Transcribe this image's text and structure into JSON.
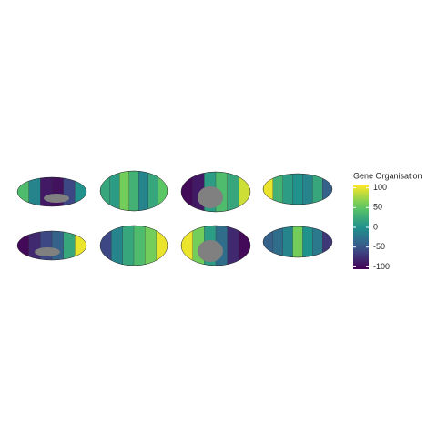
{
  "chart_data": {
    "type": "brain-map",
    "legend_title": "Gene Organisation",
    "clim": [
      -106,
      106
    ],
    "cticks": [
      100,
      50,
      0,
      -50,
      -100
    ],
    "views": [
      {
        "values": [
          40,
          -10,
          -90,
          -95,
          -60,
          0
        ]
      },
      {
        "values": [
          20,
          10,
          60,
          30,
          -10,
          20,
          50
        ]
      },
      {
        "values": [
          -100,
          -90,
          10,
          40,
          20,
          90
        ]
      },
      {
        "values": [
          100,
          30,
          10,
          0,
          -10,
          20,
          -40
        ]
      },
      {
        "values": [
          -100,
          -80,
          -60,
          -40,
          20,
          100
        ]
      },
      {
        "values": [
          -60,
          -10,
          20,
          40,
          60,
          100
        ]
      },
      {
        "values": [
          100,
          60,
          10,
          -30,
          -80,
          -100
        ]
      },
      {
        "values": [
          -40,
          -30,
          -10,
          60,
          0,
          -20,
          -70
        ]
      }
    ]
  }
}
